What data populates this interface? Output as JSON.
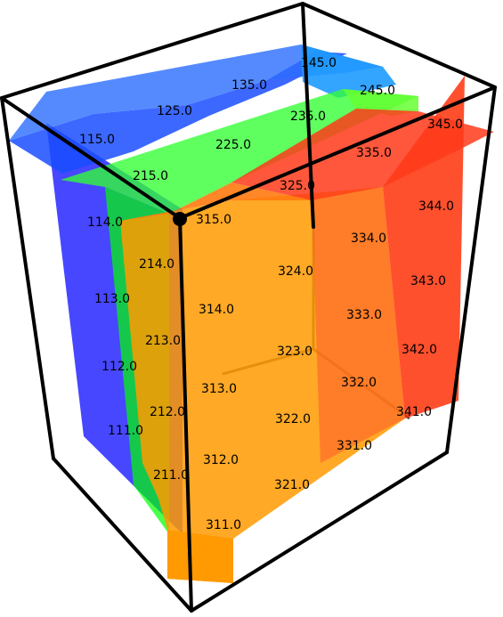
{
  "figure": {
    "layer_colors": {
      "blue": "#0000ff",
      "green": "#00ff00",
      "orange": "#ff9900",
      "red": "#ff0000",
      "sky": "#1e9bff"
    }
  },
  "labels": {
    "l111": "111.0",
    "l112": "112.0",
    "l113": "113.0",
    "l114": "114.0",
    "l115": "115.0",
    "l125": "125.0",
    "l135": "135.0",
    "l145": "145.0",
    "l211": "211.0",
    "l212": "212.0",
    "l213": "213.0",
    "l214": "214.0",
    "l215": "215.0",
    "l225": "225.0",
    "l235": "235.0",
    "l245": "245.0",
    "l311": "311.0",
    "l312": "312.0",
    "l313": "313.0",
    "l314": "314.0",
    "l315": "315.0",
    "l321": "321.0",
    "l322": "322.0",
    "l323": "323.0",
    "l324": "324.0",
    "l325": "325.0",
    "l331": "331.0",
    "l332": "332.0",
    "l333": "333.0",
    "l334": "334.0",
    "l335": "335.0",
    "l341": "341.0",
    "l342": "342.0",
    "l343": "343.0",
    "l344": "344.0",
    "l345": "345.0"
  }
}
